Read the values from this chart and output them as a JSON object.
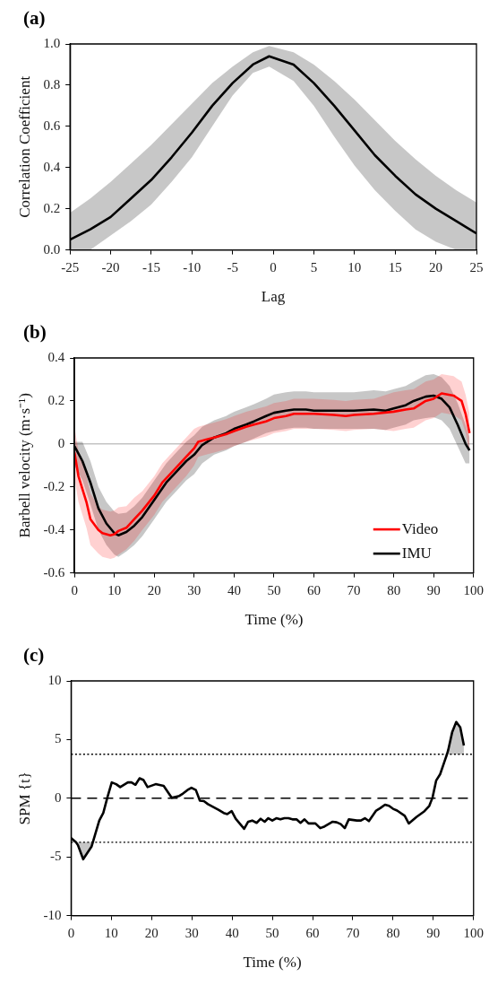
{
  "chart_data": [
    {
      "type": "line",
      "title": "(a)",
      "xlabel": "Lag",
      "ylabel": "Correlation Coefficient",
      "x": [
        -25,
        -22.5,
        -20,
        -17.5,
        -15,
        -12.5,
        -10,
        -7.5,
        -5,
        -2.5,
        -0.5,
        2.5,
        5,
        7.5,
        10,
        12.5,
        15,
        17.5,
        20,
        22.5,
        25
      ],
      "series": [
        {
          "color": "#000000",
          "values": [
            0.05,
            0.1,
            0.16,
            0.25,
            0.34,
            0.45,
            0.57,
            0.7,
            0.81,
            0.9,
            0.94,
            0.9,
            0.81,
            0.7,
            0.58,
            0.46,
            0.36,
            0.27,
            0.2,
            0.14,
            0.08
          ],
          "lower": [
            0,
            0,
            0.07,
            0.14,
            0.22,
            0.33,
            0.45,
            0.6,
            0.75,
            0.86,
            0.89,
            0.82,
            0.7,
            0.55,
            0.41,
            0.29,
            0.19,
            0.1,
            0.04,
            0,
            0
          ],
          "upper": [
            0.18,
            0.25,
            0.33,
            0.42,
            0.51,
            0.61,
            0.71,
            0.81,
            0.89,
            0.96,
            0.99,
            0.96,
            0.9,
            0.82,
            0.73,
            0.63,
            0.53,
            0.44,
            0.36,
            0.29,
            0.23
          ]
        }
      ],
      "xlim": [
        -25,
        25
      ],
      "xticks": [
        -25,
        -20,
        -15,
        -10,
        -5,
        0,
        5,
        10,
        15,
        20,
        25
      ],
      "ylim": [
        0,
        1
      ],
      "yticks": [
        {
          "value": 0,
          "label": "0.0"
        },
        {
          "value": 0.2,
          "label": "0.2"
        },
        {
          "value": 0.4,
          "label": "0.4"
        },
        {
          "value": 0.6,
          "label": "0.6"
        },
        {
          "value": 0.8,
          "label": "0.8"
        },
        {
          "value": 1,
          "label": "1.0"
        }
      ]
    },
    {
      "type": "line",
      "title": "(b)",
      "xlabel": "Time (%)",
      "ylabel": "Barbell velocity (m·s⁻¹)",
      "legend": "bottom right",
      "series": [
        {
          "name": "Video",
          "color": "#ff0000",
          "x": [
            0,
            1,
            3,
            4,
            6,
            7,
            9,
            10,
            11,
            13,
            15,
            17,
            20,
            22,
            25,
            28,
            30,
            31,
            33,
            35,
            38,
            40,
            43,
            45,
            48,
            50,
            53,
            55,
            60,
            65,
            68,
            70,
            75,
            80,
            83,
            85,
            88,
            90,
            92,
            95,
            97,
            98,
            99
          ],
          "values": [
            -0.04,
            -0.15,
            -0.27,
            -0.35,
            -0.4,
            -0.415,
            -0.425,
            -0.42,
            -0.405,
            -0.39,
            -0.35,
            -0.31,
            -0.24,
            -0.18,
            -0.12,
            -0.06,
            -0.02,
            0.01,
            0.02,
            0.03,
            0.045,
            0.06,
            0.08,
            0.09,
            0.105,
            0.12,
            0.13,
            0.14,
            0.14,
            0.135,
            0.13,
            0.135,
            0.14,
            0.15,
            0.16,
            0.165,
            0.2,
            0.21,
            0.235,
            0.225,
            0.2,
            0.14,
            0.05
          ],
          "lower": [
            -0.16,
            -0.27,
            -0.39,
            -0.47,
            -0.51,
            -0.525,
            -0.535,
            -0.53,
            -0.515,
            -0.49,
            -0.45,
            -0.4,
            -0.33,
            -0.27,
            -0.21,
            -0.15,
            -0.1,
            -0.06,
            -0.05,
            -0.04,
            -0.025,
            -0.01,
            0.01,
            0.02,
            0.035,
            0.05,
            0.06,
            0.07,
            0.07,
            0.065,
            0.06,
            0.065,
            0.07,
            0.06,
            0.07,
            0.075,
            0.11,
            0.12,
            0.145,
            0.135,
            0.11,
            0.05,
            -0.04
          ],
          "upper": [
            0.08,
            -0.03,
            -0.15,
            -0.23,
            -0.29,
            -0.305,
            -0.315,
            -0.31,
            -0.295,
            -0.29,
            -0.25,
            -0.22,
            -0.15,
            -0.09,
            -0.03,
            0.03,
            0.07,
            0.08,
            0.09,
            0.1,
            0.115,
            0.13,
            0.15,
            0.16,
            0.175,
            0.19,
            0.2,
            0.21,
            0.21,
            0.205,
            0.2,
            0.205,
            0.21,
            0.24,
            0.25,
            0.255,
            0.29,
            0.3,
            0.325,
            0.315,
            0.29,
            0.23,
            0.14
          ]
        },
        {
          "name": "IMU",
          "color": "#000000",
          "x": [
            0,
            2,
            4,
            6,
            8,
            10,
            11,
            13,
            15,
            17,
            20,
            23,
            25,
            28,
            30,
            32,
            35,
            38,
            40,
            43,
            45,
            48,
            50,
            53,
            55,
            58,
            60,
            65,
            70,
            75,
            78,
            80,
            83,
            85,
            88,
            90,
            92,
            94,
            96,
            98,
            99
          ],
          "values": [
            -0.01,
            -0.08,
            -0.18,
            -0.3,
            -0.37,
            -0.415,
            -0.425,
            -0.41,
            -0.38,
            -0.34,
            -0.26,
            -0.18,
            -0.14,
            -0.08,
            -0.05,
            -0.005,
            0.03,
            0.05,
            0.07,
            0.09,
            0.105,
            0.13,
            0.145,
            0.155,
            0.16,
            0.16,
            0.155,
            0.155,
            0.155,
            0.16,
            0.155,
            0.165,
            0.18,
            0.2,
            0.22,
            0.225,
            0.21,
            0.17,
            0.09,
            0,
            -0.03
          ],
          "lower": [
            -0.1,
            -0.17,
            -0.28,
            -0.4,
            -0.47,
            -0.515,
            -0.525,
            -0.5,
            -0.47,
            -0.43,
            -0.35,
            -0.27,
            -0.23,
            -0.17,
            -0.14,
            -0.09,
            -0.05,
            -0.03,
            -0.01,
            0.01,
            0.025,
            0.05,
            0.06,
            0.07,
            0.075,
            0.075,
            0.07,
            0.07,
            0.07,
            0.07,
            0.065,
            0.075,
            0.09,
            0.11,
            0.12,
            0.125,
            0.11,
            0.07,
            -0.01,
            -0.09,
            -0.09
          ],
          "upper": [
            0.01,
            0.01,
            -0.08,
            -0.2,
            -0.27,
            -0.315,
            -0.325,
            -0.32,
            -0.29,
            -0.25,
            -0.17,
            -0.09,
            -0.05,
            0.01,
            0.04,
            0.08,
            0.11,
            0.13,
            0.15,
            0.17,
            0.185,
            0.21,
            0.23,
            0.24,
            0.245,
            0.245,
            0.24,
            0.24,
            0.24,
            0.25,
            0.245,
            0.255,
            0.27,
            0.29,
            0.32,
            0.325,
            0.31,
            0.27,
            0.19,
            0.09,
            0.03
          ]
        }
      ],
      "xlim": [
        0,
        100
      ],
      "xticks": [
        0,
        10,
        20,
        30,
        40,
        50,
        60,
        70,
        80,
        90,
        100
      ],
      "ylim": [
        -0.6,
        0.4
      ],
      "yticks": [
        -0.6,
        -0.4,
        -0.2,
        0,
        0.2,
        0.4
      ],
      "ref_lines": [
        {
          "axis": "y",
          "value": 0,
          "color": "#a6a6a6",
          "line_style": "solid"
        }
      ]
    },
    {
      "type": "line",
      "title": "(c)",
      "xlabel": "Time (%)",
      "ylabel": "SPM {t}",
      "series": [
        {
          "color": "#000000",
          "x": [
            0,
            1.2,
            1.7,
            3,
            5.1,
            5.4,
            7,
            8,
            9,
            10.1,
            11.2,
            12.2,
            14.1,
            15,
            16,
            17,
            18,
            19,
            21,
            23,
            25,
            26.9,
            27.8,
            28.9,
            29.9,
            31,
            32,
            33,
            34,
            36.7,
            37.9,
            38.8,
            39.9,
            40.9,
            43,
            44,
            45,
            46.1,
            47.1,
            48.1,
            49,
            50,
            51,
            52,
            53,
            54,
            55,
            56,
            57,
            58,
            59,
            60.7,
            61.9,
            63,
            65,
            66,
            67,
            68,
            69,
            71,
            72,
            73,
            74,
            75.8,
            76.8,
            78,
            79,
            80,
            81,
            82.9,
            83.9,
            85.8,
            87.8,
            89,
            89.8,
            90.7,
            91.7,
            92.7,
            93.4,
            93.7,
            94.7,
            95.7,
            96.7,
            97.6
          ],
          "values": [
            -3.4,
            -3.75,
            -4,
            -5.2,
            -4.1,
            -3.75,
            -1.9,
            -1.25,
            0.05,
            1.35,
            1.2,
            0.95,
            1.35,
            1.35,
            1.15,
            1.7,
            1.55,
            0.95,
            1.2,
            1.05,
            0.05,
            0.2,
            0.4,
            0.7,
            0.9,
            0.7,
            -0.2,
            -0.25,
            -0.5,
            -1,
            -1.25,
            -1.35,
            -1.1,
            -1.75,
            -2.6,
            -2,
            -1.9,
            -2.1,
            -1.75,
            -2,
            -1.7,
            -1.9,
            -1.7,
            -1.8,
            -1.7,
            -1.7,
            -1.8,
            -1.8,
            -2.1,
            -1.8,
            -2.15,
            -2.15,
            -2.55,
            -2.4,
            -2,
            -2.05,
            -2.2,
            -2.55,
            -1.8,
            -1.9,
            -1.9,
            -1.7,
            -1.95,
            -1.05,
            -0.85,
            -0.55,
            -0.65,
            -0.9,
            -1.05,
            -1.5,
            -2.15,
            -1.6,
            -1.1,
            -0.65,
            0.05,
            1.5,
            2.05,
            3.05,
            3.75,
            4.1,
            5.65,
            6.5,
            6.05,
            4.5
          ],
          "lower": [
            null,
            -3.75,
            -4,
            -5.2,
            -4.1,
            -3.75,
            null,
            null,
            null,
            null,
            null,
            null,
            null,
            null,
            null,
            null,
            null,
            null,
            null,
            null,
            null,
            null,
            null,
            null,
            null,
            null,
            null,
            null,
            null,
            null,
            null,
            null,
            null,
            null,
            null,
            null,
            null,
            null,
            null,
            null,
            null,
            null,
            null,
            null,
            null,
            null,
            null,
            null,
            null,
            null,
            null,
            null,
            null,
            null,
            null,
            null,
            null,
            null,
            null,
            null,
            null,
            null,
            null,
            null,
            null,
            null,
            null,
            null,
            null,
            null,
            null,
            null,
            null,
            null,
            null,
            null,
            null,
            null,
            3.75,
            3.75,
            3.75,
            3.75,
            3.75,
            3.75
          ],
          "upper": [
            null,
            -3.75,
            -3.75,
            -3.75,
            -3.75,
            -3.75,
            null,
            null,
            null,
            null,
            null,
            null,
            null,
            null,
            null,
            null,
            null,
            null,
            null,
            null,
            null,
            null,
            null,
            null,
            null,
            null,
            null,
            null,
            null,
            null,
            null,
            null,
            null,
            null,
            null,
            null,
            null,
            null,
            null,
            null,
            null,
            null,
            null,
            null,
            null,
            null,
            null,
            null,
            null,
            null,
            null,
            null,
            null,
            null,
            null,
            null,
            null,
            null,
            null,
            null,
            null,
            null,
            null,
            null,
            null,
            null,
            null,
            null,
            null,
            null,
            null,
            null,
            null,
            null,
            null,
            null,
            null,
            null,
            3.75,
            4.1,
            5.65,
            6.5,
            6.05,
            4.5
          ]
        }
      ],
      "xlim": [
        0,
        100
      ],
      "xticks": [
        0,
        10,
        20,
        30,
        40,
        50,
        60,
        70,
        80,
        90,
        100
      ],
      "ylim": [
        -10,
        10
      ],
      "yticks": [
        -10,
        -5,
        0,
        5,
        10
      ],
      "ref_lines": [
        {
          "axis": "y",
          "value": 0,
          "line_style": "dashed"
        },
        {
          "axis": "y",
          "value": 3.75,
          "line_style": "dotted"
        },
        {
          "axis": "y",
          "value": -3.75,
          "line_style": "dotted"
        }
      ]
    }
  ]
}
